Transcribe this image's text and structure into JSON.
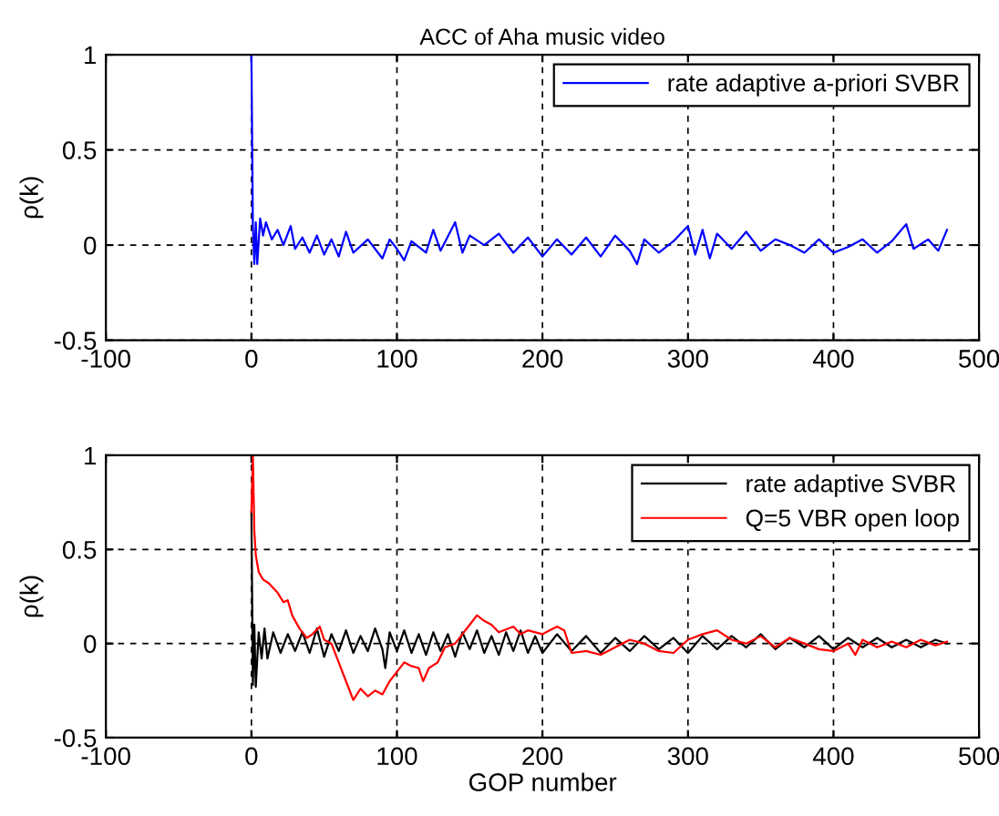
{
  "chart_data": [
    {
      "type": "line",
      "title": "ACC of Aha music video",
      "ylabel": "ρ(k)",
      "xlim": [
        -100,
        500
      ],
      "xticks": [
        -100,
        0,
        100,
        200,
        300,
        400,
        500
      ],
      "ylim": [
        -0.5,
        1
      ],
      "yticks": [
        -0.5,
        0,
        0.5,
        1
      ],
      "grid": true,
      "legend": "top right",
      "line_style": "solid",
      "series": [
        {
          "name": "rate adaptive a-priori SVBR",
          "color": "#0000ff",
          "x": [
            0,
            1,
            2,
            3,
            4,
            6,
            8,
            10,
            14,
            18,
            22,
            27,
            30,
            35,
            40,
            45,
            50,
            55,
            60,
            65,
            70,
            80,
            90,
            95,
            100,
            105,
            110,
            120,
            125,
            130,
            140,
            145,
            150,
            160,
            170,
            180,
            190,
            200,
            210,
            220,
            230,
            240,
            250,
            260,
            265,
            270,
            280,
            290,
            300,
            305,
            310,
            315,
            320,
            330,
            340,
            350,
            360,
            370,
            380,
            390,
            400,
            410,
            420,
            430,
            440,
            450,
            455,
            465,
            472,
            478
          ],
          "values": [
            1,
            0.1,
            -0.1,
            0.12,
            -0.1,
            0.14,
            0.05,
            0.12,
            0.03,
            0.08,
            0.0,
            0.1,
            -0.02,
            0.04,
            -0.04,
            0.05,
            -0.05,
            0.03,
            -0.06,
            0.07,
            -0.04,
            0.03,
            -0.07,
            0.03,
            -0.02,
            -0.08,
            0.02,
            -0.04,
            0.08,
            -0.03,
            0.12,
            -0.04,
            0.05,
            0.0,
            0.06,
            -0.04,
            0.04,
            -0.06,
            0.03,
            -0.05,
            0.04,
            -0.06,
            0.05,
            -0.03,
            -0.1,
            0.03,
            -0.04,
            0.02,
            0.1,
            -0.05,
            0.08,
            -0.07,
            0.06,
            -0.02,
            0.07,
            -0.03,
            0.03,
            0.0,
            -0.04,
            0.03,
            -0.04,
            -0.01,
            0.03,
            -0.04,
            0.02,
            0.11,
            -0.02,
            0.03,
            -0.03,
            0.08
          ]
        }
      ]
    },
    {
      "type": "line",
      "xlabel": "GOP number",
      "ylabel": "ρ(k)",
      "xlim": [
        -100,
        500
      ],
      "xticks": [
        -100,
        0,
        100,
        200,
        300,
        400,
        500
      ],
      "ylim": [
        -0.5,
        1
      ],
      "yticks": [
        -0.5,
        0,
        0.5,
        1
      ],
      "grid": true,
      "legend": "top right",
      "line_style": "solid",
      "series": [
        {
          "name": "rate adaptive SVBR",
          "color": "#000000",
          "x": [
            0,
            1,
            2,
            3,
            5,
            7,
            9,
            11,
            15,
            20,
            25,
            30,
            35,
            40,
            45,
            50,
            55,
            60,
            65,
            70,
            75,
            80,
            85,
            90,
            92,
            95,
            100,
            105,
            110,
            115,
            120,
            125,
            130,
            135,
            140,
            145,
            150,
            155,
            160,
            165,
            170,
            175,
            180,
            185,
            190,
            195,
            200,
            210,
            220,
            230,
            240,
            250,
            260,
            270,
            280,
            290,
            300,
            310,
            320,
            330,
            340,
            350,
            360,
            370,
            380,
            390,
            400,
            410,
            420,
            430,
            440,
            450,
            460,
            470,
            478
          ],
          "values": [
            0.7,
            -0.22,
            0.1,
            -0.23,
            0.06,
            -0.08,
            0.08,
            -0.08,
            0.06,
            -0.05,
            0.05,
            -0.04,
            0.06,
            -0.05,
            0.08,
            -0.07,
            0.05,
            -0.04,
            0.07,
            -0.05,
            0.04,
            -0.04,
            0.08,
            -0.03,
            -0.13,
            0.06,
            -0.04,
            0.07,
            -0.05,
            0.05,
            -0.06,
            0.06,
            -0.04,
            0.05,
            -0.07,
            0.06,
            -0.03,
            0.07,
            -0.05,
            0.04,
            -0.06,
            0.06,
            -0.04,
            0.07,
            -0.05,
            0.04,
            -0.05,
            0.05,
            -0.04,
            0.04,
            -0.05,
            0.03,
            -0.04,
            0.04,
            -0.03,
            0.03,
            -0.05,
            0.04,
            -0.03,
            0.04,
            -0.02,
            0.05,
            -0.03,
            0.03,
            -0.02,
            0.04,
            -0.03,
            0.03,
            -0.02,
            0.03,
            -0.02,
            0.02,
            -0.02,
            0.02,
            0.0
          ]
        },
        {
          "name": "Q=5 VBR open loop",
          "color": "#ff0000",
          "x": [
            0,
            1,
            2,
            3,
            5,
            8,
            12,
            18,
            22,
            25,
            28,
            33,
            38,
            42,
            47,
            50,
            55,
            60,
            65,
            70,
            75,
            80,
            85,
            90,
            95,
            100,
            105,
            110,
            115,
            118,
            122,
            128,
            133,
            140,
            145,
            150,
            155,
            160,
            165,
            170,
            180,
            185,
            190,
            200,
            210,
            215,
            220,
            230,
            240,
            250,
            260,
            270,
            280,
            290,
            300,
            310,
            320,
            330,
            340,
            350,
            360,
            370,
            380,
            390,
            400,
            410,
            415,
            420,
            430,
            440,
            450,
            460,
            470,
            478
          ],
          "values": [
            0.7,
            1.0,
            0.6,
            0.47,
            0.38,
            0.34,
            0.32,
            0.27,
            0.22,
            0.23,
            0.15,
            0.08,
            0.03,
            0.05,
            0.09,
            0.02,
            0.0,
            -0.1,
            -0.2,
            -0.3,
            -0.24,
            -0.28,
            -0.25,
            -0.27,
            -0.2,
            -0.15,
            -0.1,
            -0.12,
            -0.13,
            -0.2,
            -0.13,
            -0.1,
            -0.02,
            0.0,
            0.05,
            0.1,
            0.15,
            0.12,
            0.1,
            0.06,
            0.09,
            0.05,
            0.07,
            0.05,
            0.09,
            0.07,
            -0.05,
            -0.04,
            -0.06,
            -0.02,
            0.02,
            0.0,
            -0.04,
            -0.05,
            0.02,
            0.05,
            0.07,
            0.02,
            0.0,
            0.04,
            -0.02,
            0.03,
            0.0,
            -0.03,
            -0.04,
            0.0,
            -0.06,
            0.02,
            -0.02,
            0.01,
            -0.02,
            0.02,
            -0.01,
            0.01
          ]
        }
      ]
    }
  ]
}
